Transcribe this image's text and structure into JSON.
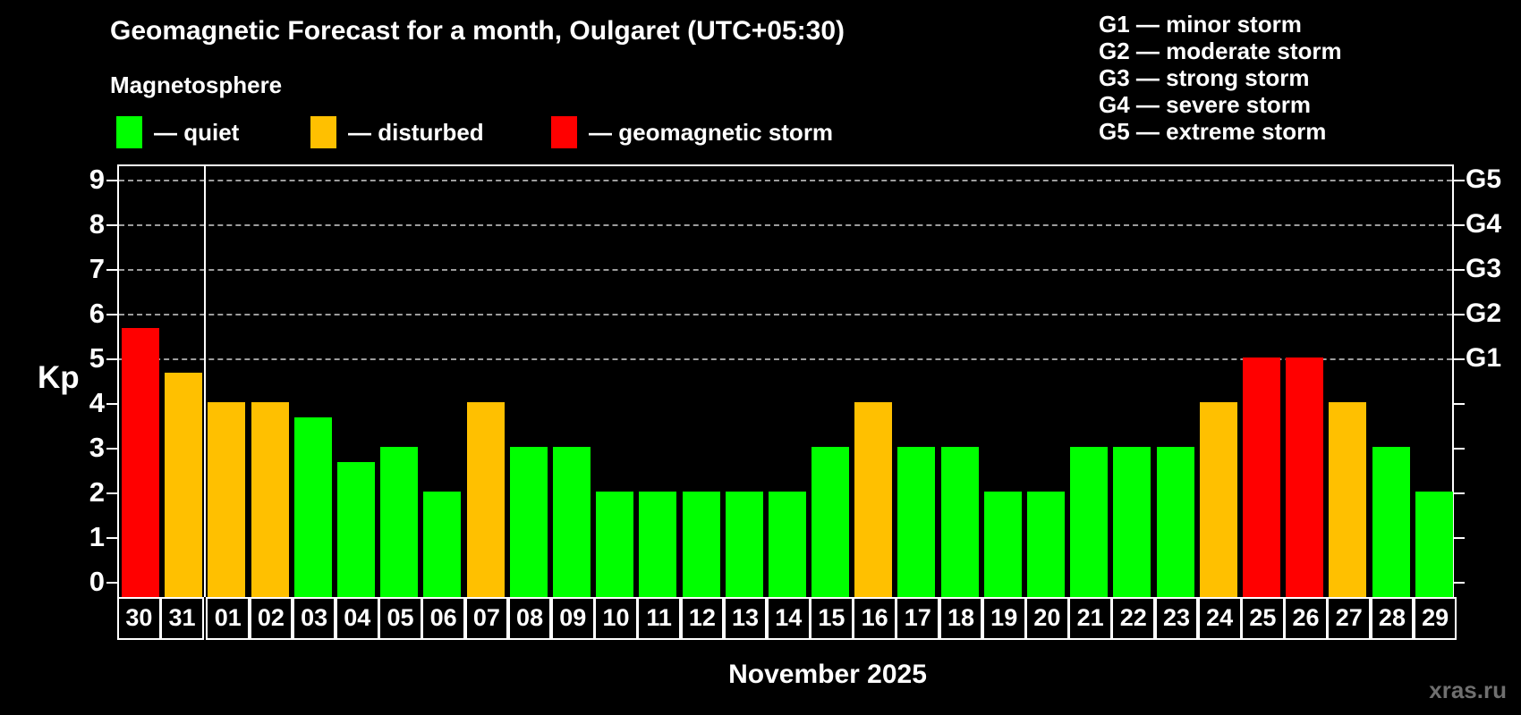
{
  "header": {
    "title": "Geomagnetic Forecast for a month, Oulgaret (UTC+05:30)",
    "subtitle": "Magnetosphere"
  },
  "legend": {
    "items": [
      {
        "status": "quiet",
        "color": "#00ff00",
        "label": "— quiet"
      },
      {
        "status": "disturbed",
        "color": "#ffc000",
        "label": "— disturbed"
      },
      {
        "status": "storm",
        "color": "#ff0000",
        "label": "— geomagnetic storm"
      }
    ]
  },
  "storm_scale_legend": {
    "items": [
      "G1 — minor storm",
      "G2 — moderate storm",
      "G3 — strong storm",
      "G4 — severe storm",
      "G5 — extreme storm"
    ]
  },
  "chart_data": {
    "type": "bar",
    "title": "Geomagnetic Forecast for a month, Oulgaret (UTC+05:30)",
    "ylabel": "Kp",
    "xlabel": "November 2025",
    "ylim": [
      0,
      9
    ],
    "y_ticks": [
      0,
      1,
      2,
      3,
      4,
      5,
      6,
      7,
      8,
      9
    ],
    "gridlines_at": [
      5,
      6,
      7,
      8,
      9
    ],
    "grid_style": "dashed",
    "legend_position": "top",
    "right_axis_labels": [
      {
        "kp": 5,
        "label": "G1"
      },
      {
        "kp": 6,
        "label": "G2"
      },
      {
        "kp": 7,
        "label": "G3"
      },
      {
        "kp": 8,
        "label": "G4"
      },
      {
        "kp": 9,
        "label": "G5"
      }
    ],
    "month_separator_after_category": "31",
    "categories": [
      "30",
      "31",
      "01",
      "02",
      "03",
      "04",
      "05",
      "06",
      "07",
      "08",
      "09",
      "10",
      "11",
      "12",
      "13",
      "14",
      "15",
      "16",
      "17",
      "18",
      "19",
      "20",
      "21",
      "22",
      "23",
      "24",
      "25",
      "26",
      "27",
      "28",
      "29"
    ],
    "values": [
      5.67,
      4.67,
      4,
      4,
      3.67,
      2.67,
      3,
      2,
      4,
      3,
      3,
      2,
      2,
      2,
      2,
      2,
      3,
      4,
      3,
      3,
      2,
      2,
      3,
      3,
      3,
      4,
      5,
      5,
      4,
      3,
      2
    ],
    "statuses": [
      "storm",
      "disturbed",
      "disturbed",
      "disturbed",
      "quiet",
      "quiet",
      "quiet",
      "quiet",
      "disturbed",
      "quiet",
      "quiet",
      "quiet",
      "quiet",
      "quiet",
      "quiet",
      "quiet",
      "quiet",
      "disturbed",
      "quiet",
      "quiet",
      "quiet",
      "quiet",
      "quiet",
      "quiet",
      "quiet",
      "disturbed",
      "storm",
      "storm",
      "disturbed",
      "quiet",
      "quiet"
    ],
    "status_colors": {
      "quiet": "#00ff00",
      "disturbed": "#ffc000",
      "storm": "#ff0000"
    }
  },
  "footer": {
    "xlabel": "November 2025",
    "watermark": "xras.ru"
  }
}
